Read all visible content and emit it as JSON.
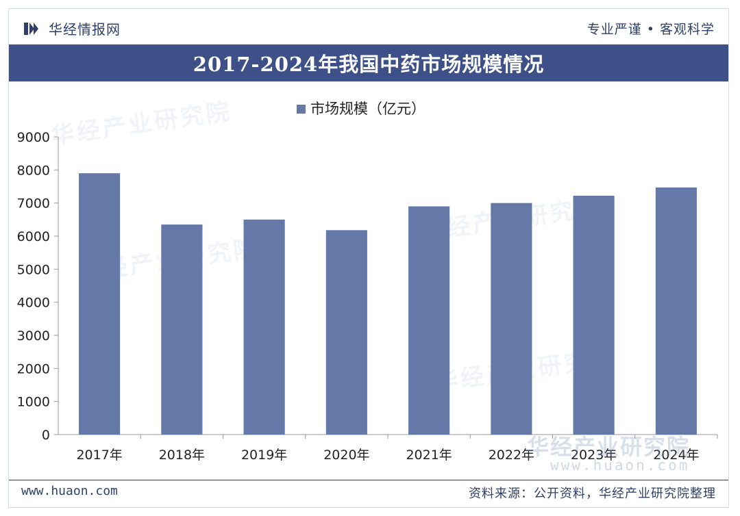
{
  "header": {
    "site_name": "华经情报网",
    "slogan": "专业严谨 • 客观科学",
    "title": "2017-2024年我国中药市场规模情况"
  },
  "watermark": {
    "text": "华经产业研究院",
    "url": "www.huaon.com"
  },
  "footer": {
    "website": "www.huaon.com",
    "source": "资料来源：公开资料，华经产业研究院整理"
  },
  "colors": {
    "bar": "#6479a8",
    "title_bg": "#3d5088",
    "text": "#2f3f6a"
  },
  "chart_data": {
    "type": "bar",
    "title": "2017-2024年我国中药市场规模情况",
    "categories": [
      "2017年",
      "2018年",
      "2019年",
      "2020年",
      "2021年",
      "2022年",
      "2023年",
      "2024年"
    ],
    "series": [
      {
        "name": "市场规模（亿元）",
        "values": [
          7900,
          6350,
          6500,
          6180,
          6900,
          7000,
          7220,
          7470
        ]
      }
    ],
    "ylim": [
      0,
      9000
    ],
    "yticks": [
      0,
      1000,
      2000,
      3000,
      4000,
      5000,
      6000,
      7000,
      8000,
      9000
    ],
    "legend_position": "top-center",
    "grid": false
  }
}
